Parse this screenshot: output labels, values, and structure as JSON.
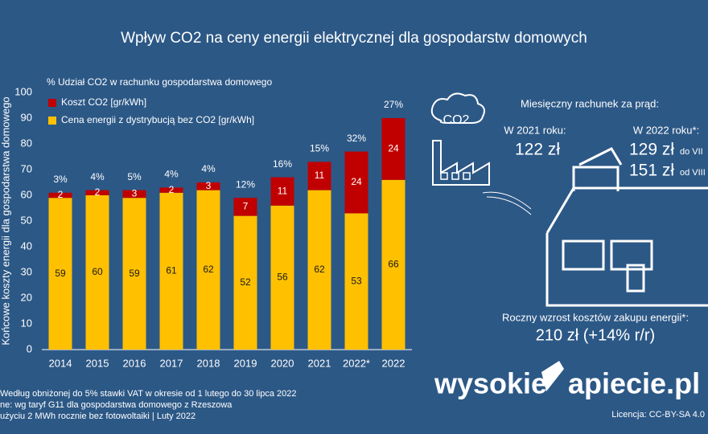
{
  "chart_data": {
    "type": "stacked_bar",
    "title": "Wpływ CO2 na ceny energii elektrycznej dla gospodarstw domowych",
    "y_label": "Końcowe koszty energii dla gospodarstwa domowego",
    "categories": [
      "2014",
      "2015",
      "2016",
      "2017",
      "2018",
      "2019",
      "2020",
      "2021",
      "2022*",
      "2022"
    ],
    "series": [
      {
        "name": "Cena energii z dystrybucją bez CO2 [gr/kWh]",
        "color": "#ffc000",
        "values": [
          59,
          60,
          59,
          61,
          62,
          52,
          56,
          62,
          53,
          66
        ]
      },
      {
        "name": "Koszt CO2 [gr/kWh]",
        "color": "#c00000",
        "values": [
          2,
          2,
          3,
          2,
          3,
          7,
          11,
          11,
          24,
          24
        ]
      }
    ],
    "share": {
      "name": "% Udział CO2 w rachunku gospodarstwa domowego",
      "values": [
        3,
        4,
        5,
        4,
        4,
        12,
        16,
        15,
        32,
        27
      ],
      "value_labels": [
        "3%",
        "4%",
        "5%",
        "4%",
        "4%",
        "12%",
        "16%",
        "15%",
        "32%",
        "27%"
      ]
    },
    "ylim": [
      0,
      100
    ],
    "yticks": [
      0,
      10,
      20,
      30,
      40,
      50,
      60,
      70,
      80,
      90,
      100
    ],
    "footnotes": [
      "Według obniżonej do 5% stawki VAT w okresie od 1 lutego do 30 lipca 2022",
      "ne: wg taryf G11 dla gospodarstwa domowego z Rzeszowa",
      "użyciu 2 MWh rocznie bez fotowoltaiki  |  Luty  2022"
    ]
  },
  "panel": {
    "heading": "Miesięczny rachunek za prąd:",
    "cloud": "CO2",
    "y2021_label": "W 2021 roku:",
    "y2021_value": "122 zł",
    "y2022_label": "W 2022 roku*:",
    "y2022_value_a": "129 zł",
    "y2022_period_a": "do VII",
    "y2022_value_b": "151 zł",
    "y2022_period_b": "od VIII",
    "annual_label": "Roczny wzrost kosztów zakupu energii*:",
    "annual_value": "210 zł (+14% r/r)",
    "logo_a": "wysokie",
    "logo_b": "apiecie.pl",
    "license": "Licencja: CC-BY-SA 4.0"
  }
}
